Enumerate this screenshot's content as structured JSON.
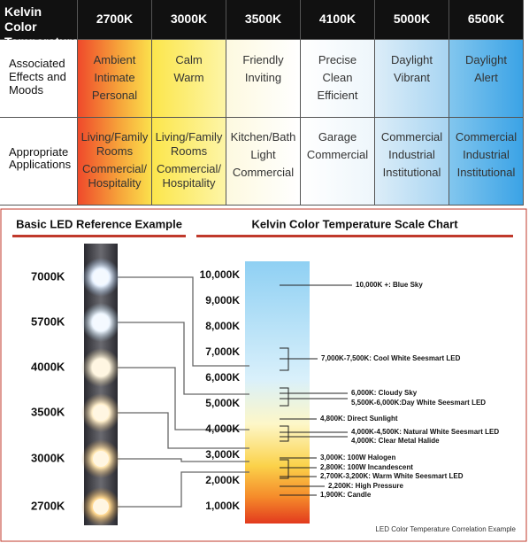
{
  "table": {
    "header": [
      "Kelvin Color Temperature",
      "2700K",
      "3000K",
      "3500K",
      "4100K",
      "5000K",
      "6500K"
    ],
    "rows": [
      {
        "label": [
          "Associated",
          "Effects and",
          "Moods"
        ],
        "cells": [
          [
            "Ambient",
            "Intimate",
            "Personal"
          ],
          [
            "Calm",
            "Warm"
          ],
          [
            "Friendly",
            "Inviting"
          ],
          [
            "Precise",
            "Clean",
            "Efficient"
          ],
          [
            "Daylight",
            "Vibrant"
          ],
          [
            "Daylight",
            "Alert"
          ]
        ]
      },
      {
        "label": [
          "Appropriate",
          "Applications"
        ],
        "cells": [
          [
            "Living/Family",
            "Rooms",
            "Commercial/",
            "Hospitality"
          ],
          [
            "Living/Family",
            "Rooms",
            "Commercial/",
            "Hospitality"
          ],
          [
            "Kitchen/Bath",
            "Light",
            "Commercial"
          ],
          [
            "Garage",
            "Commercial"
          ],
          [
            "Commercial",
            "Industrial",
            "Institutional"
          ],
          [
            "Commercial",
            "Industrial",
            "Institutional"
          ]
        ]
      }
    ]
  },
  "reference": {
    "title": "Basic LED Reference Example",
    "leds": [
      "7000K",
      "5700K",
      "4000K",
      "3500K",
      "3000K",
      "2700K"
    ]
  },
  "scale": {
    "title": "Kelvin Color Temperature Scale Chart",
    "ticks": [
      "10,000K",
      "9,000K",
      "8,000K",
      "7,000K",
      "6,000K",
      "5,000K",
      "4,000K",
      "3,000K",
      "2,000K",
      "1,000K"
    ],
    "annotations": [
      "10,000K +: Blue Sky",
      "7,000K-7,500K: Cool White Seesmart LED",
      "6,000K: Cloudy Sky",
      "5,500K-6,000K:Day White Seesmart LED",
      "4,800K: Direct Sunlight",
      "4,000K-4,500K: Natural White Seesmart LED",
      "4,000K: Clear Metal Halide",
      "3,000K: 100W Halogen",
      "2,800K: 100W Incandescent",
      "2,700K-3,200K: Warm White Seesmart LED",
      "2,200K: High Pressure",
      "1,900K: Candle"
    ],
    "caption": "LED Color Temperature Correlation Example"
  }
}
